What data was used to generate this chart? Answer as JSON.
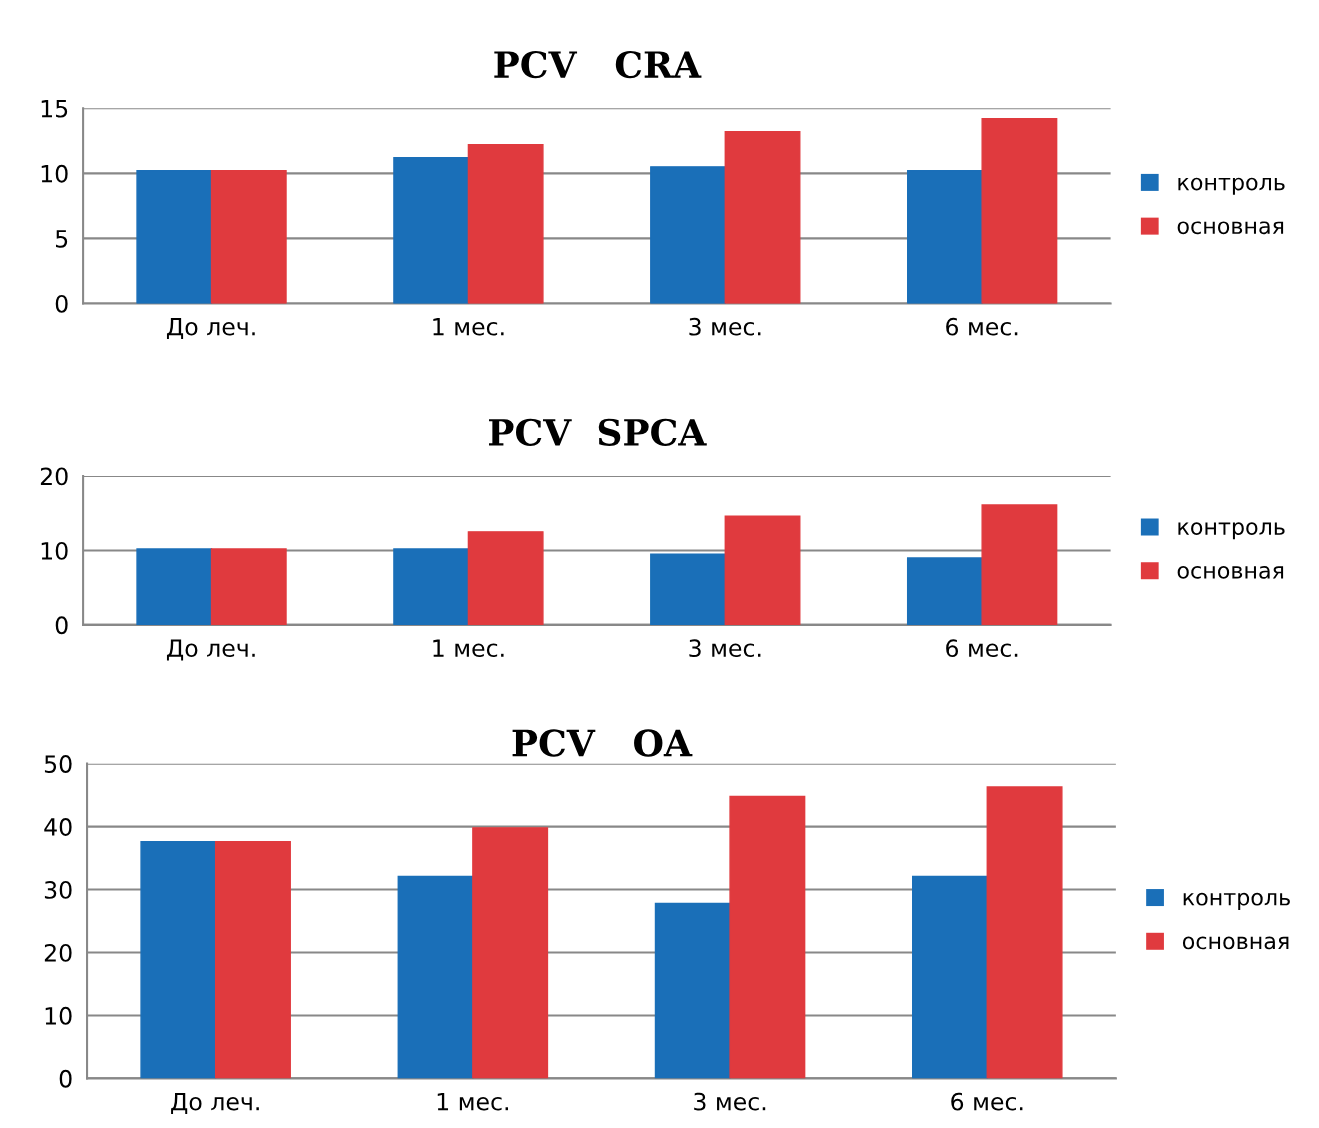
{
  "chart_data": [
    {
      "type": "bar",
      "title": "PCV   CRA",
      "categories": [
        "До леч.",
        "1 мес.",
        "3 мес.",
        "6 мес."
      ],
      "series": [
        {
          "name": "контроль",
          "color": "#1a6fb8",
          "values": [
            10.2,
            11.2,
            10.5,
            10.2
          ]
        },
        {
          "name": "основная",
          "color": "#e03a3e",
          "values": [
            10.2,
            12.2,
            13.2,
            14.2
          ]
        }
      ],
      "ylim": [
        0,
        15
      ],
      "yticks": [
        0,
        5,
        10,
        15
      ],
      "grid": "y",
      "legend": "right"
    },
    {
      "type": "bar",
      "title": "PCV  SPCA",
      "categories": [
        "До леч.",
        "1 мес.",
        "3 мес.",
        "6 мес."
      ],
      "series": [
        {
          "name": "контроль",
          "color": "#1a6fb8",
          "values": [
            10.2,
            10.2,
            9.5,
            9.0
          ]
        },
        {
          "name": "основная",
          "color": "#e03a3e",
          "values": [
            10.2,
            12.5,
            14.6,
            16.1
          ]
        }
      ],
      "ylim": [
        0,
        20
      ],
      "yticks": [
        0,
        10,
        20
      ],
      "grid": "y",
      "legend": "right"
    },
    {
      "type": "bar",
      "title": "PCV   OA",
      "categories": [
        "До леч.",
        "1 мес.",
        "3 мес.",
        "6 мес."
      ],
      "series": [
        {
          "name": "контроль",
          "color": "#1a6fb8",
          "values": [
            37.6,
            32.1,
            27.8,
            32.1
          ]
        },
        {
          "name": "основная",
          "color": "#e03a3e",
          "values": [
            37.6,
            39.8,
            44.8,
            46.3
          ]
        }
      ],
      "ylim": [
        0,
        50
      ],
      "yticks": [
        0,
        10,
        20,
        30,
        40,
        50
      ],
      "grid": "y",
      "legend": "right"
    }
  ]
}
